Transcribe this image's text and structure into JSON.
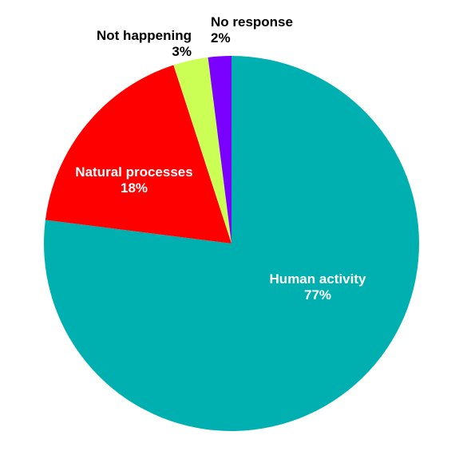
{
  "chart_data": {
    "type": "pie",
    "start_angle_deg": 0,
    "direction": "clockwise",
    "slices": [
      {
        "label": "Human activity",
        "value": 77,
        "value_text": "77%",
        "color": "#00b0b0",
        "text_color": "#ffffff"
      },
      {
        "label": "Natural processes",
        "value": 18,
        "value_text": "18%",
        "color": "#ff0000",
        "text_color": "#ffffff"
      },
      {
        "label": "Not happening",
        "value": 3,
        "value_text": "3%",
        "color": "#ccff55",
        "text_color": "#000000"
      },
      {
        "label": "No response",
        "value": 2,
        "value_text": "2%",
        "color": "#7a00ff",
        "text_color": "#000000"
      }
    ]
  }
}
